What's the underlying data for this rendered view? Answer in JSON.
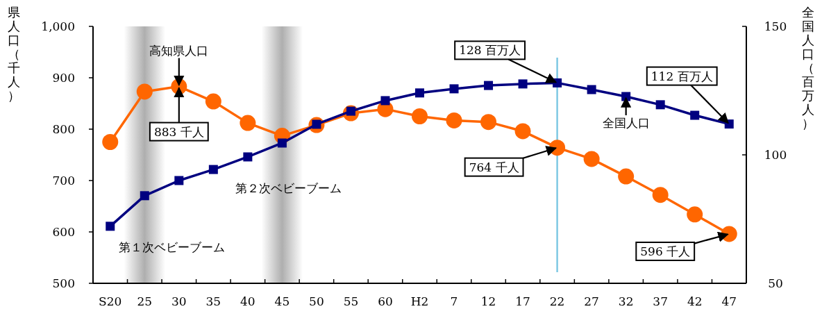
{
  "chart_data": {
    "type": "line",
    "categories": [
      "S20",
      "25",
      "30",
      "35",
      "40",
      "45",
      "50",
      "55",
      "60",
      "H2",
      "7",
      "12",
      "17",
      "22",
      "27",
      "32",
      "37",
      "42",
      "47"
    ],
    "ylabel": "県人口（千人）",
    "y2label": "全国人口（百万人）",
    "ylim": [
      500,
      1000
    ],
    "yticks": [
      500,
      600,
      700,
      800,
      900,
      {
        "value": 1000,
        "label": "1,000"
      }
    ],
    "y2lim": [
      50,
      150
    ],
    "y2ticks": [
      50,
      100,
      150
    ],
    "series": [
      {
        "color": "#ff6600",
        "marker": "circle",
        "values": [
          775,
          873,
          883,
          854,
          812,
          787,
          808,
          831,
          839,
          825,
          817,
          814,
          796,
          764,
          742,
          708,
          672,
          634,
          596
        ]
      },
      {
        "color": "#000080",
        "marker": "square",
        "axis": "y2",
        "values": [
          72.2,
          84.1,
          90,
          94.3,
          99.2,
          104.6,
          111.9,
          117,
          121.1,
          124.1,
          125.7,
          127,
          127.6,
          128,
          125.4,
          122.7,
          119.5,
          115.4,
          112
        ]
      }
    ],
    "ref_lines": [
      {
        "axis": "x",
        "value": "22",
        "color": "#7ec8e3"
      }
    ],
    "bands": [
      {
        "axis": "x",
        "from": "25",
        "to": "25",
        "label": "第１次ベビーブーム",
        "color": "#a0a0a0"
      },
      {
        "axis": "x",
        "from": "45",
        "to": "45",
        "label": "第２次ベビーブーム",
        "color": "#a0a0a0"
      }
    ],
    "annotations": [
      {
        "text": "高知県人口",
        "x": "30",
        "y": 883
      },
      {
        "text": "全国人口",
        "x": "32",
        "y": 863.5
      },
      {
        "text": "883 千人",
        "x": "30",
        "y": 883
      },
      {
        "text": "128 百万人",
        "x": "22",
        "y": 890
      },
      {
        "text": "112 百万人",
        "x": "47",
        "y": 810
      },
      {
        "text": "764 千人",
        "x": "22",
        "y": 764
      },
      {
        "text": "596 千人",
        "x": "47",
        "y": 596
      }
    ],
    "grid": false
  }
}
